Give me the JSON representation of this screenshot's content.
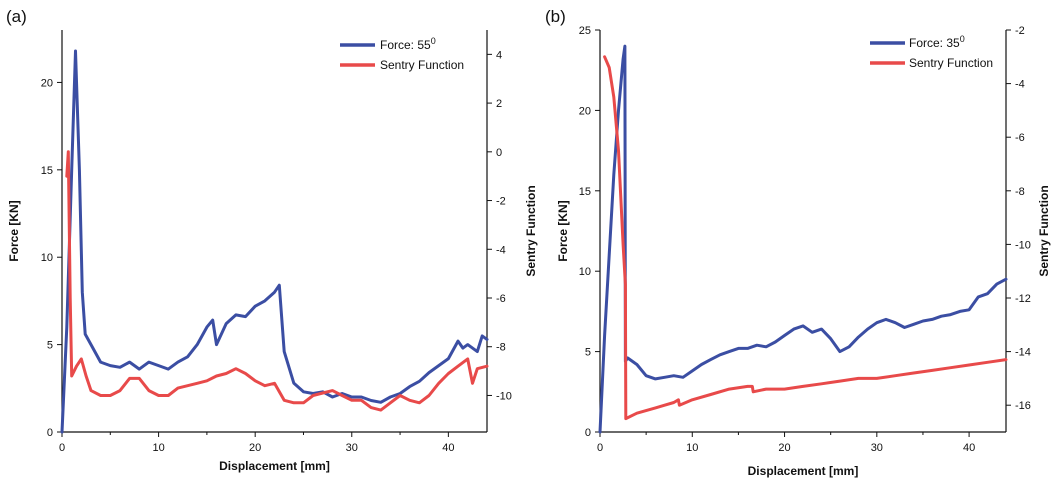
{
  "chart_data": [
    {
      "panel_label": "(a)",
      "type": "line",
      "xlabel": "Displacement [mm]",
      "ylabel_left": "Force [KN]",
      "ylabel_right": "Sentry Function",
      "xlim": [
        0,
        44
      ],
      "ylim_left": [
        0,
        23
      ],
      "ylim_right": [
        -11.5,
        5
      ],
      "xticks": [
        0,
        10,
        20,
        30,
        40
      ],
      "yticks_left": [
        0,
        5,
        10,
        15,
        20
      ],
      "yticks_right": [
        -10,
        -8,
        -6,
        -4,
        -2,
        0,
        2,
        4
      ],
      "grid": false,
      "legend_position": "top-right",
      "series": [
        {
          "name": "Force: 55",
          "name_sup": "0",
          "axis": "left",
          "color": "#3b4ea3",
          "x": [
            0,
            0.5,
            1.0,
            1.4,
            1.8,
            2.1,
            2.4,
            3.0,
            4,
            5,
            6,
            7,
            8,
            9,
            10,
            11,
            12,
            13,
            14,
            15,
            15.6,
            16,
            17,
            18,
            19,
            20,
            21,
            22,
            22.5,
            23,
            24,
            25,
            26,
            27,
            28,
            29,
            30,
            31,
            32,
            33,
            34,
            35,
            36,
            37,
            38,
            39,
            40,
            41,
            41.5,
            42,
            43,
            43.5,
            44
          ],
          "y": [
            0,
            6,
            15,
            21.8,
            15,
            8,
            5.6,
            5.0,
            4.0,
            3.8,
            3.7,
            4.0,
            3.6,
            4.0,
            3.8,
            3.6,
            4.0,
            4.3,
            5.0,
            6.0,
            6.4,
            5.0,
            6.2,
            6.7,
            6.6,
            7.2,
            7.5,
            8.0,
            8.4,
            4.6,
            2.8,
            2.3,
            2.2,
            2.3,
            2.0,
            2.2,
            2.0,
            2.0,
            1.8,
            1.7,
            2.0,
            2.2,
            2.6,
            2.9,
            3.4,
            3.8,
            4.2,
            5.2,
            4.8,
            5.0,
            4.6,
            5.5,
            5.3
          ]
        },
        {
          "name": "Sentry Function",
          "axis": "right",
          "color": "#e84a4a",
          "x": [
            0.5,
            0.65,
            0.85,
            1.0,
            1.5,
            2.0,
            2.5,
            3.0,
            4,
            5,
            6,
            7,
            8,
            9,
            10,
            11,
            12,
            13,
            14,
            15,
            16,
            17,
            18,
            19,
            20,
            21,
            22,
            23,
            24,
            25,
            26,
            27,
            28,
            29,
            30,
            31,
            32,
            33,
            34,
            35,
            36,
            37,
            38,
            39,
            40,
            41,
            42,
            42.5,
            43,
            44
          ],
          "y": [
            -1,
            0,
            -6,
            -9.2,
            -8.8,
            -8.5,
            -9.2,
            -9.8,
            -10.0,
            -10.0,
            -9.8,
            -9.3,
            -9.3,
            -9.8,
            -10.0,
            -10.0,
            -9.7,
            -9.6,
            -9.5,
            -9.4,
            -9.2,
            -9.1,
            -8.9,
            -9.1,
            -9.4,
            -9.6,
            -9.5,
            -10.2,
            -10.3,
            -10.3,
            -10.0,
            -9.9,
            -9.8,
            -10.0,
            -10.2,
            -10.2,
            -10.5,
            -10.6,
            -10.3,
            -10.0,
            -10.2,
            -10.3,
            -10.0,
            -9.5,
            -9.1,
            -8.8,
            -8.5,
            -9.5,
            -8.9,
            -8.8
          ]
        }
      ]
    },
    {
      "panel_label": "(b)",
      "type": "line",
      "xlabel": "Displacement [mm]",
      "ylabel_left": "Force [KN]",
      "ylabel_right": "Sentry Function",
      "xlim": [
        0,
        44
      ],
      "ylim_left": [
        0,
        25
      ],
      "ylim_right": [
        -17,
        -2
      ],
      "xticks": [
        0,
        10,
        20,
        30,
        40
      ],
      "yticks_left": [
        0,
        5,
        10,
        15,
        20,
        25
      ],
      "yticks_right": [
        -16,
        -14,
        -12,
        -10,
        -8,
        -6,
        -4,
        -2
      ],
      "grid": false,
      "legend_position": "top-right",
      "series": [
        {
          "name": "Force: 35",
          "name_sup": "0",
          "axis": "left",
          "color": "#3b4ea3",
          "x": [
            0,
            0.5,
            1.0,
            1.5,
            2.0,
            2.5,
            2.7,
            2.75,
            3.0,
            4,
            5,
            6,
            7,
            8,
            9,
            10,
            11,
            12,
            13,
            14,
            15,
            16,
            17,
            18,
            19,
            20,
            21,
            22,
            23,
            24,
            25,
            26,
            27,
            28,
            29,
            30,
            31,
            32,
            33,
            34,
            35,
            36,
            37,
            38,
            39,
            40,
            41,
            42,
            43,
            44
          ],
          "y": [
            0,
            6,
            11,
            16,
            20,
            23.2,
            24,
            4.4,
            4.6,
            4.2,
            3.5,
            3.3,
            3.4,
            3.5,
            3.4,
            3.8,
            4.2,
            4.5,
            4.8,
            5.0,
            5.2,
            5.2,
            5.4,
            5.3,
            5.6,
            6.0,
            6.4,
            6.6,
            6.2,
            6.4,
            5.8,
            5.0,
            5.3,
            5.9,
            6.4,
            6.8,
            7.0,
            6.8,
            6.5,
            6.7,
            6.9,
            7.0,
            7.2,
            7.3,
            7.5,
            7.6,
            8.4,
            8.6,
            9.2,
            9.5
          ]
        },
        {
          "name": "Sentry Function",
          "axis": "right",
          "color": "#e84a4a",
          "x": [
            0.5,
            1.0,
            1.5,
            2.0,
            2.5,
            2.75,
            2.8,
            4,
            5,
            6,
            7,
            8,
            8.5,
            8.6,
            10,
            12,
            14,
            16,
            16.5,
            16.6,
            18,
            20,
            22,
            24,
            26,
            28,
            30,
            32,
            34,
            36,
            38,
            40,
            42,
            44
          ],
          "y": [
            -3.0,
            -3.4,
            -4.5,
            -6.5,
            -10.0,
            -11.5,
            -16.5,
            -16.3,
            -16.2,
            -16.1,
            -16.0,
            -15.9,
            -15.8,
            -16.0,
            -15.8,
            -15.6,
            -15.4,
            -15.3,
            -15.3,
            -15.5,
            -15.4,
            -15.4,
            -15.3,
            -15.2,
            -15.1,
            -15.0,
            -15.0,
            -14.9,
            -14.8,
            -14.7,
            -14.6,
            -14.5,
            -14.4,
            -14.3
          ]
        }
      ]
    }
  ]
}
